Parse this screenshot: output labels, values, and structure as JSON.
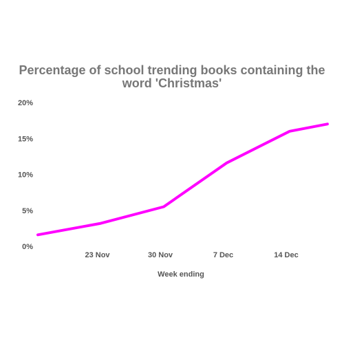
{
  "chart_data": {
    "type": "line",
    "title": "Percentage of school trending books containing the word 'Christmas'",
    "xlabel": "Week ending",
    "ylabel": "",
    "x_tick_labels": [
      "23 Nov",
      "30 Nov",
      "7 Dec",
      "14 Dec"
    ],
    "y_tick_labels": [
      "0%",
      "5%",
      "10%",
      "15%",
      "20%"
    ],
    "ylim": [
      0,
      20
    ],
    "grid": false,
    "legend": "none",
    "series": [
      {
        "color": "#ff00ff",
        "points": [
          {
            "x": 0.0,
            "y": 1.6
          },
          {
            "x": 1.0,
            "y": 3.2
          },
          {
            "x": 2.0,
            "y": 5.5
          },
          {
            "x": 3.0,
            "y": 11.6
          },
          {
            "x": 4.0,
            "y": 16.0
          },
          {
            "x": 4.6,
            "y": 17.0
          }
        ]
      }
    ]
  }
}
